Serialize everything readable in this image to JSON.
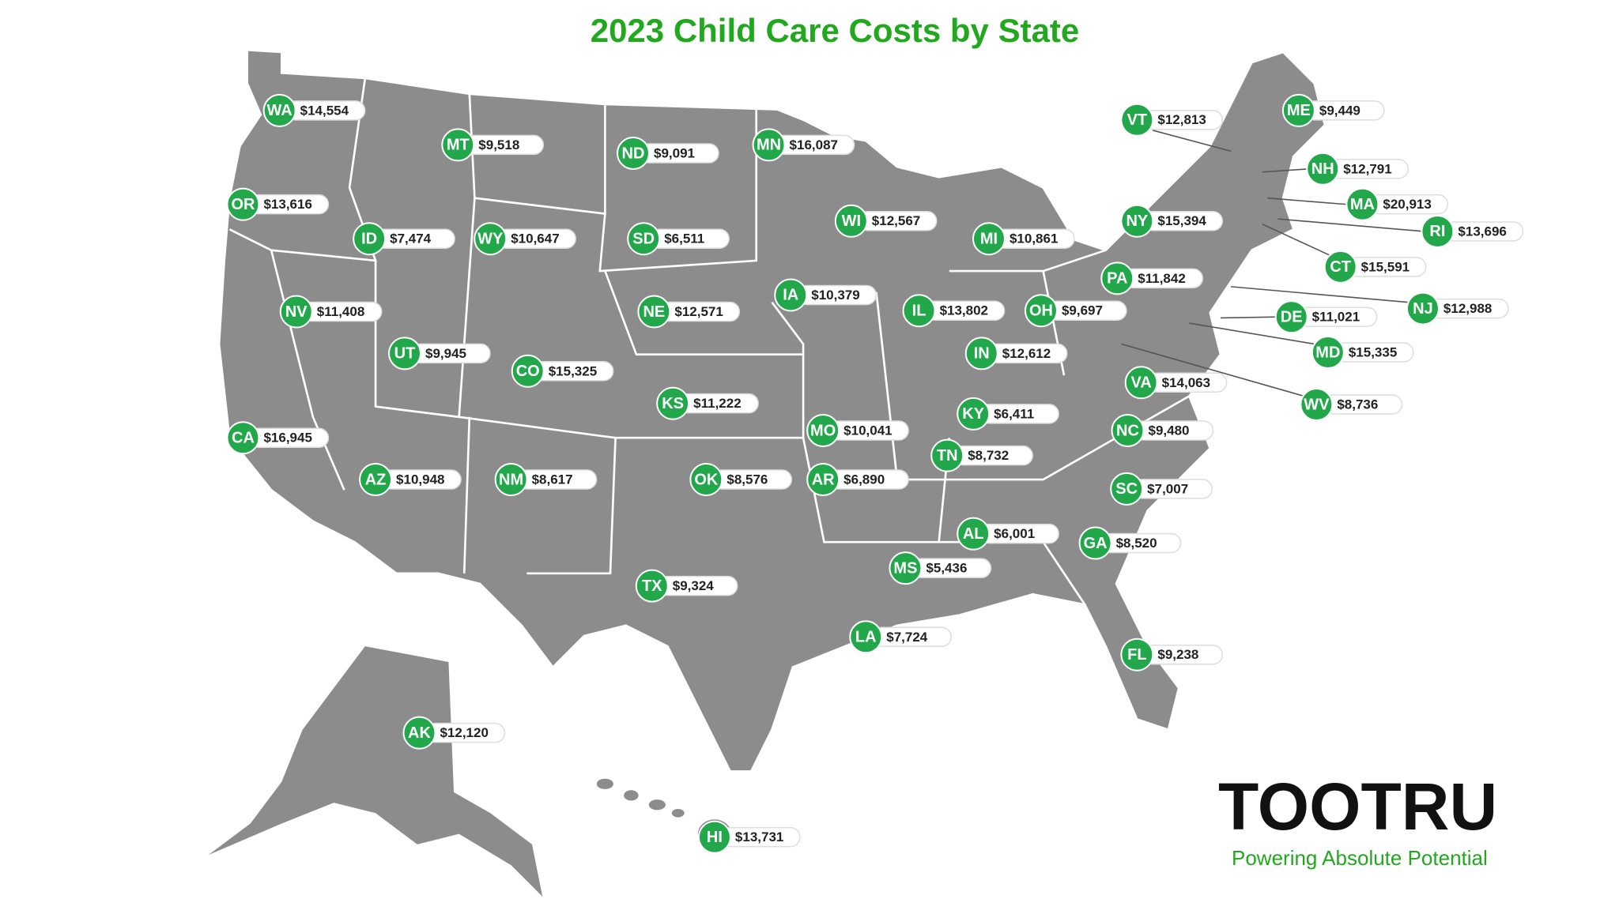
{
  "title": "2023 Child Care Costs by State",
  "states": [
    {
      "code": "WA",
      "cost": "$14,554"
    },
    {
      "code": "MT",
      "cost": "$9,518"
    },
    {
      "code": "ND",
      "cost": "$9,091"
    },
    {
      "code": "MN",
      "cost": "$16,087"
    },
    {
      "code": "OR",
      "cost": "$13,616"
    },
    {
      "code": "ID",
      "cost": "$7,474"
    },
    {
      "code": "WY",
      "cost": "$10,647"
    },
    {
      "code": "SD",
      "cost": "$6,511"
    },
    {
      "code": "WI",
      "cost": "$12,567"
    },
    {
      "code": "MI",
      "cost": "$10,861"
    },
    {
      "code": "NV",
      "cost": "$11,408"
    },
    {
      "code": "NE",
      "cost": "$12,571"
    },
    {
      "code": "IA",
      "cost": "$10,379"
    },
    {
      "code": "IL",
      "cost": "$13,802"
    },
    {
      "code": "OH",
      "cost": "$9,697"
    },
    {
      "code": "PA",
      "cost": "$11,842"
    },
    {
      "code": "NY",
      "cost": "$15,394"
    },
    {
      "code": "VT",
      "cost": "$12,813"
    },
    {
      "code": "ME",
      "cost": "$9,449"
    },
    {
      "code": "NH",
      "cost": "$12,791"
    },
    {
      "code": "MA",
      "cost": "$20,913"
    },
    {
      "code": "RI",
      "cost": "$13,696"
    },
    {
      "code": "CT",
      "cost": "$15,591"
    },
    {
      "code": "NJ",
      "cost": "$12,988"
    },
    {
      "code": "DE",
      "cost": "$11,021"
    },
    {
      "code": "MD",
      "cost": "$15,335"
    },
    {
      "code": "WV",
      "cost": "$8,736"
    },
    {
      "code": "UT",
      "cost": "$9,945"
    },
    {
      "code": "CO",
      "cost": "$15,325"
    },
    {
      "code": "IN",
      "cost": "$12,612"
    },
    {
      "code": "VA",
      "cost": "$14,063"
    },
    {
      "code": "KS",
      "cost": "$11,222"
    },
    {
      "code": "KY",
      "cost": "$6,411"
    },
    {
      "code": "CA",
      "cost": "$16,945"
    },
    {
      "code": "MO",
      "cost": "$10,041"
    },
    {
      "code": "NC",
      "cost": "$9,480"
    },
    {
      "code": "TN",
      "cost": "$8,732"
    },
    {
      "code": "AZ",
      "cost": "$10,948"
    },
    {
      "code": "NM",
      "cost": "$8,617"
    },
    {
      "code": "OK",
      "cost": "$8,576"
    },
    {
      "code": "AR",
      "cost": "$6,890"
    },
    {
      "code": "SC",
      "cost": "$7,007"
    },
    {
      "code": "AL",
      "cost": "$6,001"
    },
    {
      "code": "GA",
      "cost": "$8,520"
    },
    {
      "code": "MS",
      "cost": "$5,436"
    },
    {
      "code": "TX",
      "cost": "$9,324"
    },
    {
      "code": "LA",
      "cost": "$7,724"
    },
    {
      "code": "FL",
      "cost": "$9,238"
    },
    {
      "code": "AK",
      "cost": "$12,120"
    },
    {
      "code": "HI",
      "cost": "$13,731"
    }
  ],
  "logo": {
    "name": "TOOTRU",
    "tagline": "Powering Absolute Potential"
  }
}
